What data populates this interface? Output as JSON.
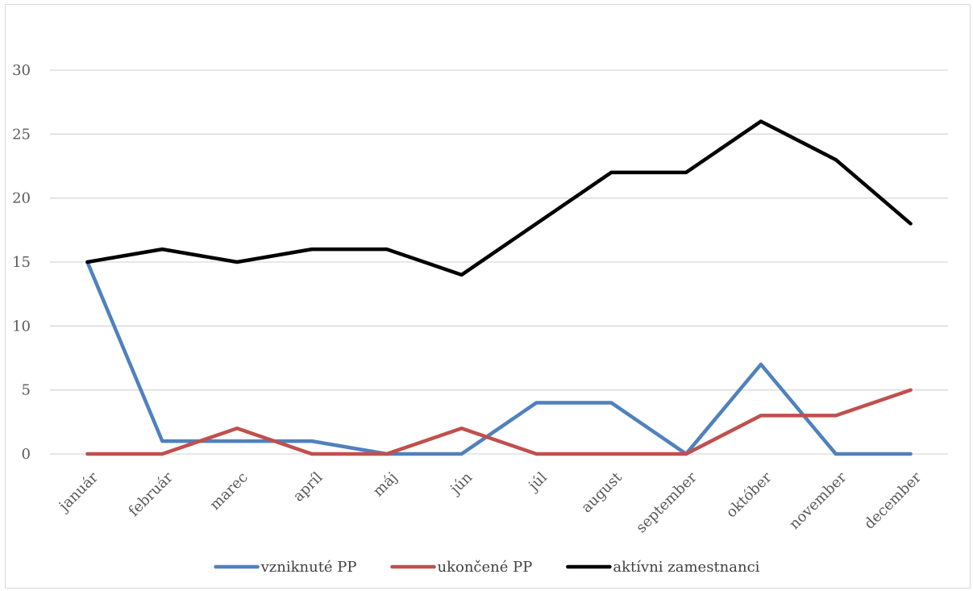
{
  "chart_data": {
    "type": "line",
    "title": "",
    "xlabel": "",
    "ylabel": "",
    "categories": [
      "január",
      "február",
      "marec",
      "apríl",
      "máj",
      "jún",
      "júl",
      "august",
      "september",
      "október",
      "november",
      "december"
    ],
    "ylim": [
      0,
      30
    ],
    "yticks": [
      0,
      5,
      10,
      15,
      20,
      25,
      30
    ],
    "grid": true,
    "legend": "bottom",
    "series": [
      {
        "name": "vzniknuté PP",
        "color": "#4f81bd",
        "values": [
          15,
          1,
          1,
          1,
          0,
          0,
          4,
          4,
          0,
          7,
          0,
          0
        ]
      },
      {
        "name": "ukončené PP",
        "color": "#c0504d",
        "values": [
          0,
          0,
          2,
          0,
          0,
          2,
          0,
          0,
          0,
          3,
          3,
          5
        ]
      },
      {
        "name": "aktívni zamestnanci",
        "color": "#000000",
        "values": [
          15,
          16,
          15,
          16,
          16,
          14,
          18,
          22,
          22,
          26,
          23,
          18
        ]
      }
    ]
  }
}
